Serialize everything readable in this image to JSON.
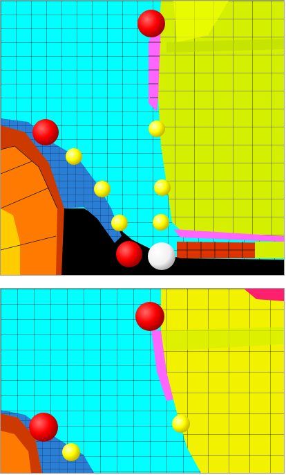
{
  "colors": {
    "fluid": "#00ffff",
    "solid": "#d4f000",
    "solid_light": "#f2ff00",
    "edge": "#ff66ff",
    "ball": "#ff0000",
    "hole": "#000000",
    "cyl_outer": "#ff7a00",
    "cyl_rim": "#cc3a00",
    "cyl_inner": "#ffcc00",
    "mesh_blue": "#2a7fd4",
    "line": "#1a1a1a",
    "node": "#ffff00",
    "node_selected": "#ffffff"
  },
  "views": [
    {
      "id": "top",
      "description": ""
    },
    {
      "id": "bottom",
      "description": ""
    }
  ]
}
